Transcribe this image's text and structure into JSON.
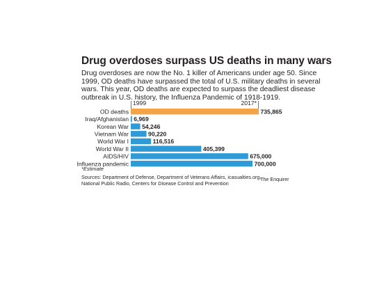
{
  "title": "Drug overdoses surpass US deaths in many wars",
  "description": [
    "Drug overdoses are now the No. 1 killer of Americans under age 50. Since",
    "1999, OD deaths have surpassed the total of U.S. military deaths in several",
    "wars. This year, OD deaths are expected to surpass the deadliest disease",
    "outbreak in U.S. history, the Influenza Pandemic of 1918-1919."
  ],
  "note": "*Estimate",
  "sources": [
    "Sources: Department of Defense, Department of Veterans Affairs, icasualties.org,",
    "National Public Radio, Centers for Disease Control and Prevention"
  ],
  "credit": "The Enquirer",
  "colors": {
    "highlight": "#f4a447",
    "bar": "#2e9ad6",
    "text": "#231f20"
  },
  "chart_data": {
    "type": "bar",
    "orientation": "horizontal",
    "title": "Drug overdoses surpass US deaths in many wars",
    "range_labels": {
      "start": "1999",
      "end": "2017*"
    },
    "categories": [
      "OD deaths",
      "Iraq/Afghanistan",
      "Korean War",
      "Vietnam War",
      "World War I",
      "World War II",
      "AIDS/HIV",
      "Influenza pandemic"
    ],
    "values": [
      735865,
      6969,
      54246,
      90220,
      116516,
      405399,
      675000,
      700000
    ],
    "value_labels": [
      "735,865",
      "6,969",
      "54,246",
      "90,220",
      "116,516",
      "405,399",
      "675,000",
      "700,000"
    ],
    "highlight_index": 0,
    "xlim": [
      0,
      735865
    ],
    "grid": false,
    "legend": "none"
  }
}
